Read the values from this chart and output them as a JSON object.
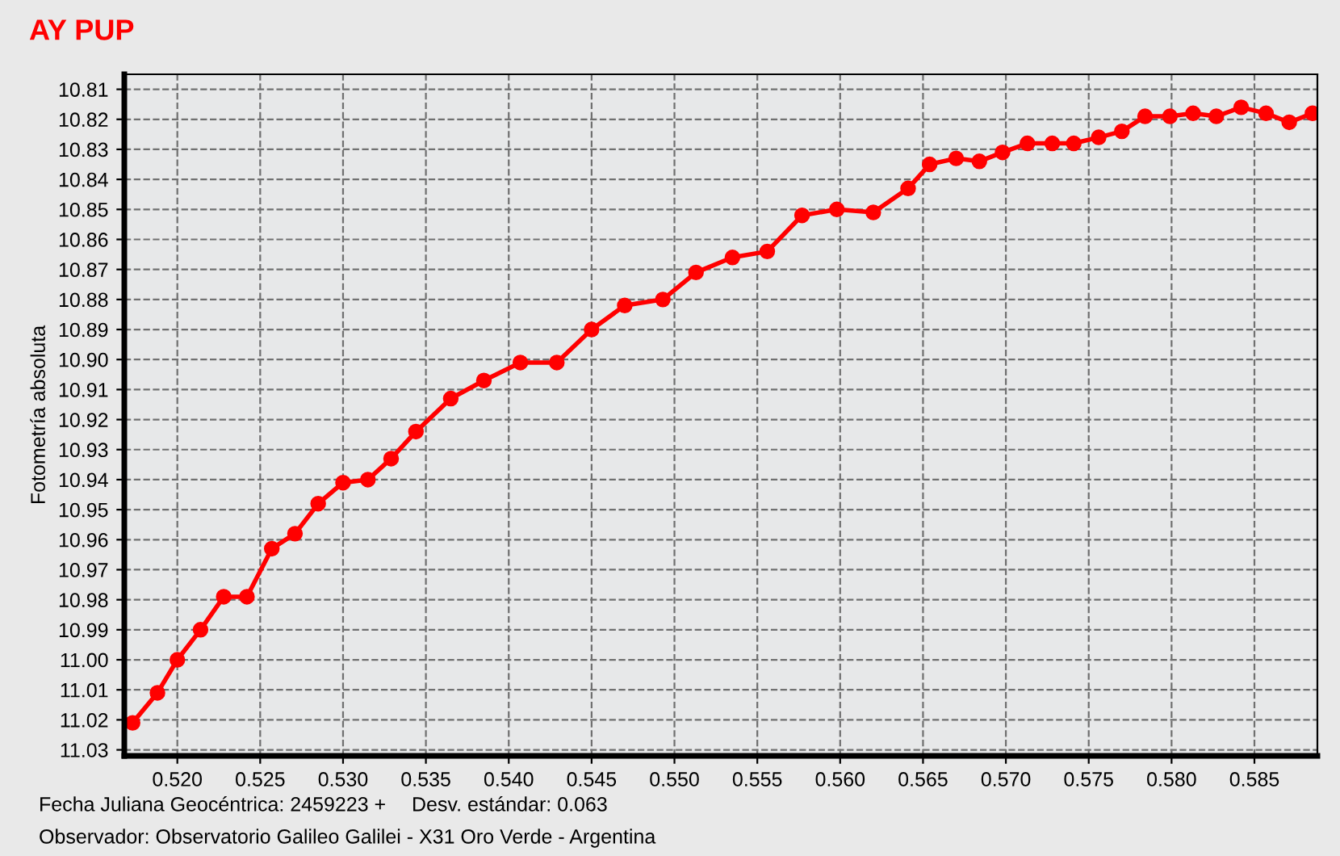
{
  "chart_data": {
    "type": "line",
    "title": "AY PUP",
    "ylabel": "Fotometría absoluta",
    "annotations": [
      "Fecha Juliana Geocéntrica: 2459223 +",
      "Desv. estándar: 0.063",
      "Observador: Observatorio Galileo Galilei - X31 Oro Verde - Argentina"
    ],
    "series": [
      {
        "color": "#ff0000",
        "x": [
          0.5173,
          0.5188,
          0.52,
          0.5214,
          0.5228,
          0.5242,
          0.5257,
          0.5271,
          0.5285,
          0.53,
          0.5315,
          0.5329,
          0.5344,
          0.5365,
          0.5385,
          0.5407,
          0.5429,
          0.545,
          0.547,
          0.5493,
          0.5513,
          0.5535,
          0.5556,
          0.5577,
          0.5598,
          0.562,
          0.5641,
          0.5654,
          0.567,
          0.5684,
          0.5698,
          0.5713,
          0.5728,
          0.5741,
          0.5756,
          0.577,
          0.5784,
          0.5799,
          0.5813,
          0.5827,
          0.5842,
          0.5857,
          0.5871,
          0.5885
        ],
        "values": [
          11.021,
          11.011,
          11.0,
          10.99,
          10.979,
          10.979,
          10.963,
          10.958,
          10.948,
          10.941,
          10.94,
          10.933,
          10.924,
          10.913,
          10.907,
          10.901,
          10.901,
          10.89,
          10.882,
          10.88,
          10.871,
          10.866,
          10.864,
          10.852,
          10.85,
          10.851,
          10.843,
          10.835,
          10.833,
          10.834,
          10.831,
          10.828,
          10.828,
          10.828,
          10.826,
          10.824,
          10.819,
          10.819,
          10.818,
          10.819,
          10.816,
          10.818,
          10.821,
          10.818
        ]
      }
    ],
    "xlim": [
      0.5168,
      0.5888
    ],
    "ylim": [
      11.032,
      10.805
    ],
    "xticks": [
      {
        "value": 0.52,
        "label": "0.520"
      },
      {
        "value": 0.525,
        "label": "0.525"
      },
      {
        "value": 0.53,
        "label": "0.530"
      },
      {
        "value": 0.535,
        "label": "0.535"
      },
      {
        "value": 0.54,
        "label": "0.540"
      },
      {
        "value": 0.545,
        "label": "0.545"
      },
      {
        "value": 0.55,
        "label": "0.550"
      },
      {
        "value": 0.555,
        "label": "0.555"
      },
      {
        "value": 0.56,
        "label": "0.560"
      },
      {
        "value": 0.565,
        "label": "0.565"
      },
      {
        "value": 0.57,
        "label": "0.570"
      },
      {
        "value": 0.575,
        "label": "0.575"
      },
      {
        "value": 0.58,
        "label": "0.580"
      },
      {
        "value": 0.585,
        "label": "0.585"
      }
    ],
    "yticks": [
      10.81,
      10.82,
      10.83,
      10.84,
      10.85,
      10.86,
      10.87,
      10.88,
      10.89,
      {
        "value": 10.9,
        "label": "10.90"
      },
      10.91,
      10.92,
      10.93,
      10.94,
      10.95,
      10.96,
      10.97,
      10.98,
      10.99,
      {
        "value": 11.0,
        "label": "11.00"
      },
      11.01,
      11.02,
      11.03
    ],
    "grid": true,
    "marker": "circle",
    "line_style": "solid"
  }
}
